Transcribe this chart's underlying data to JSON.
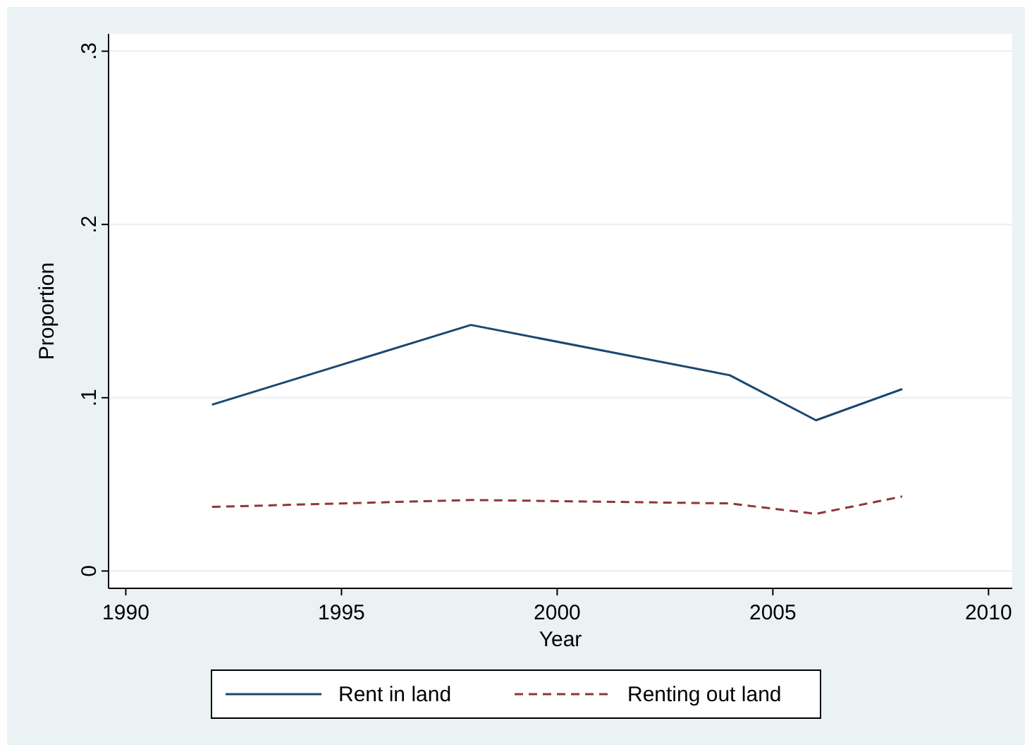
{
  "chart_data": {
    "type": "line",
    "xlabel": "Year",
    "ylabel": "Proportion",
    "x": [
      1992,
      1998,
      2004,
      2006,
      2008
    ],
    "series": [
      {
        "name": "Rent in land",
        "color": "#1a476f",
        "values": [
          0.096,
          0.142,
          0.113,
          0.087,
          0.105
        ],
        "line_style": "solid"
      },
      {
        "name": "Renting out land",
        "color": "#90353b",
        "values": [
          0.037,
          0.041,
          0.039,
          0.033,
          0.043
        ],
        "line_style": "dashed"
      }
    ],
    "xlim": [
      1989.6,
      2010.55
    ],
    "xticks": [
      1990,
      1995,
      2000,
      2005,
      2010
    ],
    "ylim": [
      -0.01,
      0.31
    ],
    "yticks": [
      0,
      {
        "value": 0.1,
        "label": ".1"
      },
      {
        "value": 0.2,
        "label": ".2"
      },
      {
        "value": 0.3,
        "label": ".3"
      }
    ],
    "grid": "y",
    "legend": "bottom",
    "marker": "none"
  }
}
